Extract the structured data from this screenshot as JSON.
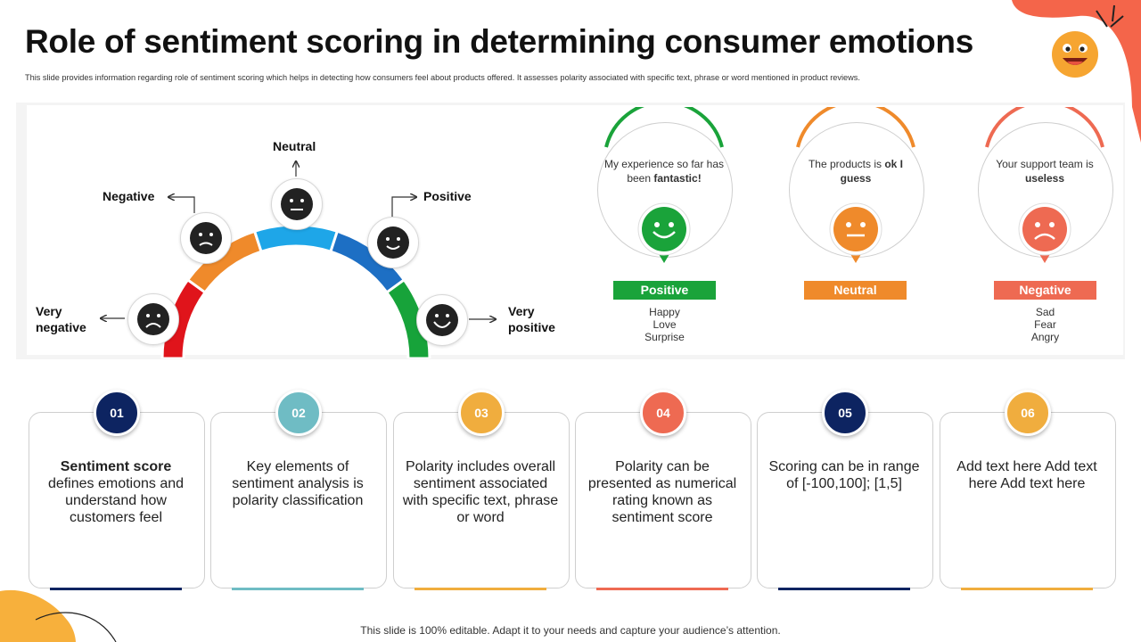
{
  "header": {
    "title": "Role of sentiment scoring in determining consumer emotions",
    "subtitle": "This slide provides information regarding role of sentiment scoring which helps in detecting how consumers feel about products offered. It assesses polarity associated with specific text, phrase or word mentioned in product reviews."
  },
  "gauge": {
    "labels": {
      "very_negative_1": "Very",
      "very_negative_2": "negative",
      "negative": "Negative",
      "neutral": "Neutral",
      "positive": "Positive",
      "very_positive_1": "Very",
      "very_positive_2": "positive"
    },
    "segment_colors": [
      "#e0141b",
      "#ef8a2b",
      "#1ea6e8",
      "#1d6fc4",
      "#17a33a"
    ]
  },
  "examples": [
    {
      "quote_plain": "My experience  so far has been ",
      "quote_bold": "fantastic!",
      "label": "Positive",
      "color": "#1aa33a",
      "emotions": [
        "Happy",
        "Love",
        "Surprise"
      ]
    },
    {
      "quote_plain": "The products is ",
      "quote_bold": "ok I guess",
      "label": "Neutral",
      "color": "#ef8a2b",
      "emotions": []
    },
    {
      "quote_plain": "Your support team is ",
      "quote_bold": "useless",
      "label": "Negative",
      "color": "#ee6a52",
      "emotions": [
        "Sad",
        "Fear",
        "Angry"
      ]
    }
  ],
  "steps": [
    {
      "num": "01",
      "bold": "Sentiment score",
      "text": "defines emotions and understand how customers feel",
      "color": "#0d2461"
    },
    {
      "num": "02",
      "bold": "",
      "text": "Key elements of sentiment analysis is polarity classification",
      "color": "#6fbcc4"
    },
    {
      "num": "03",
      "bold": "",
      "text": "Polarity includes overall sentiment associated with specific text, phrase or word",
      "color": "#f0ad3e"
    },
    {
      "num": "04",
      "bold": "",
      "text": "Polarity can be presented as numerical rating known as sentiment score",
      "color": "#ee6a52"
    },
    {
      "num": "05",
      "bold": "",
      "text": "Scoring can be in range of [-100,100]; [1,5]",
      "color": "#0d2461"
    },
    {
      "num": "06",
      "bold": "",
      "text": "Add text here Add text here Add text here",
      "color": "#f0ad3e"
    }
  ],
  "footer": "This slide is 100% editable. Adapt it to your needs and capture your audience’s attention."
}
